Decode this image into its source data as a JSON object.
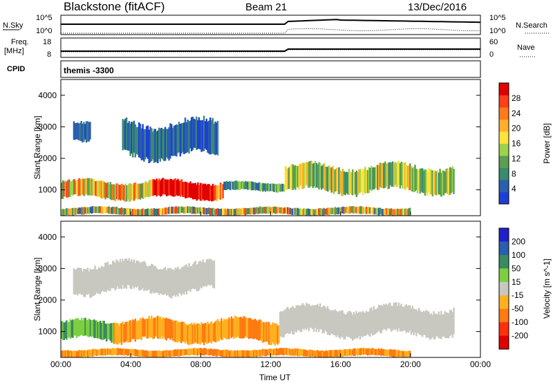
{
  "header": {
    "station": "Blackstone (fitACF)",
    "beam": "Beam 21",
    "date": "13/Dec/2016"
  },
  "side_labels": {
    "nsky": "N.Sky",
    "nsearch": "N.Search",
    "freq": "Freq.",
    "freq_unit": "[MHz]",
    "nave": "Nave",
    "cpid": "CPID",
    "nsky_top": "10^5",
    "nsky_bottom": "10^0",
    "freq_top": "18",
    "freq_bottom": "8",
    "nave_top": "60",
    "nave_bottom": "0",
    "cpid_text": "themis -3300"
  },
  "chart_data": [
    {
      "type": "heatmap",
      "title": "",
      "quantity": "Power",
      "xlabel": "Time UT",
      "ylabel": "Slant Range [km]",
      "x_ticks": [
        "00:00",
        "04:00",
        "08:00",
        "12:00",
        "16:00",
        "20:00",
        "00:00"
      ],
      "xlim_hours": [
        0,
        24
      ],
      "y_ticks": [
        1000,
        2000,
        3000,
        4000
      ],
      "ylim_km": [
        180,
        4500
      ],
      "colorbar": {
        "label": "Power [dB]",
        "ticks": [
          4,
          8,
          12,
          16,
          20,
          24,
          28
        ],
        "range": [
          0,
          30
        ],
        "colors": [
          "#1f3fd4",
          "#2a5fb0",
          "#3a8a70",
          "#5aa050",
          "#9cd24c",
          "#ffe23a",
          "#ffb02a",
          "#ff7a1a",
          "#ff3f16",
          "#e00000"
        ]
      },
      "features": [
        {
          "t_start": 0.0,
          "t_end": 9.3,
          "range_min": 700,
          "range_max": 1300,
          "level": "medium-high",
          "peak_t": 7.0
        },
        {
          "t_start": 9.3,
          "t_end": 12.8,
          "range_min": 950,
          "range_max": 1250,
          "level": "low-medium"
        },
        {
          "t_start": 12.8,
          "t_end": 22.5,
          "range_min": 900,
          "range_max": 1800,
          "level": "medium"
        },
        {
          "t_start": 0.7,
          "t_end": 1.7,
          "range_min": 2600,
          "range_max": 3300,
          "level": "low"
        },
        {
          "t_start": 3.5,
          "t_end": 9.0,
          "range_min": 2000,
          "range_max": 3200,
          "level": "low"
        },
        {
          "t_start": 0.0,
          "t_end": 20.0,
          "range_min": 200,
          "range_max": 450,
          "level": "mixed"
        }
      ]
    },
    {
      "type": "heatmap",
      "title": "",
      "quantity": "Velocity",
      "xlabel": "Time UT",
      "ylabel": "Slant Range [km]",
      "x_ticks": [
        "00:00",
        "04:00",
        "08:00",
        "12:00",
        "16:00",
        "20:00",
        "00:00"
      ],
      "xlim_hours": [
        0,
        24
      ],
      "y_ticks": [
        1000,
        2000,
        3000,
        4000
      ],
      "ylim_km": [
        180,
        4500
      ],
      "colorbar": {
        "label": "Velocity [m s^-1]",
        "ticks": [
          "200",
          "100",
          "50",
          "15",
          "-15",
          "-50",
          "-100",
          "-200"
        ],
        "colors": [
          "#2020c8",
          "#2a5fb0",
          "#3a8a60",
          "#7ecf40",
          "#c8c8c0",
          "#ffb020",
          "#ff7a10",
          "#ff3010",
          "#e00000"
        ]
      },
      "features": [
        {
          "t_start": 0.0,
          "t_end": 3.0,
          "range_min": 700,
          "range_max": 1350,
          "level": "positive ~50"
        },
        {
          "t_start": 3.0,
          "t_end": 12.5,
          "range_min": 650,
          "range_max": 1400,
          "level": "negative ~-50"
        },
        {
          "t_start": 12.5,
          "t_end": 22.5,
          "range_min": 850,
          "range_max": 1800,
          "level": "near zero"
        },
        {
          "t_start": 0.7,
          "t_end": 8.8,
          "range_min": 2200,
          "range_max": 3200,
          "level": "near zero"
        },
        {
          "t_start": 0.0,
          "t_end": 20.0,
          "range_min": 200,
          "range_max": 450,
          "level": "negative ~-50"
        }
      ]
    }
  ]
}
